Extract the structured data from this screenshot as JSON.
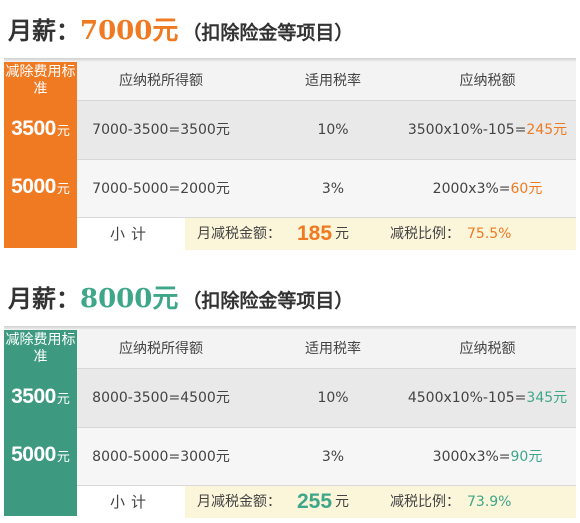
{
  "sections": [
    {
      "title_prefix": "月薪：",
      "salary": "7000元",
      "title_note": "（扣除险金等项目）",
      "left_header": "减除费用标准",
      "headers": [
        "应纳税所得额",
        "适用税率",
        "应纳税额"
      ],
      "rows": [
        {
          "standard": "3500",
          "unit": "元",
          "income_calc": "7000-3500=3500元",
          "rate": "10%",
          "tax_calc": "3500x10%-105=",
          "tax_result": "245元"
        },
        {
          "standard": "5000",
          "unit": "元",
          "income_calc": "7000-5000=2000元",
          "rate": "3%",
          "tax_calc": "2000x3%=",
          "tax_result": "60元"
        }
      ],
      "subtotal_label": "小计",
      "reduction_label": "月减税金额：",
      "reduction_amount": "185",
      "reduction_unit": "元",
      "ratio_label": "减税比例：",
      "ratio_value": "75.5%",
      "accent": "#f07a22"
    },
    {
      "title_prefix": "月薪：",
      "salary": "8000元",
      "title_note": "（扣除险金等项目）",
      "left_header": "减除费用标准",
      "headers": [
        "应纳税所得额",
        "适用税率",
        "应纳税额"
      ],
      "rows": [
        {
          "standard": "3500",
          "unit": "元",
          "income_calc": "8000-3500=4500元",
          "rate": "10%",
          "tax_calc": "4500x10%-105=",
          "tax_result": "345元"
        },
        {
          "standard": "5000",
          "unit": "元",
          "income_calc": "8000-5000=3000元",
          "rate": "3%",
          "tax_calc": "3000x3%=",
          "tax_result": "90元"
        }
      ],
      "subtotal_label": "小计",
      "reduction_label": "月减税金额：",
      "reduction_amount": "255",
      "reduction_unit": "元",
      "ratio_label": "减税比例：",
      "ratio_value": "73.9%",
      "accent": "#3d9a80"
    }
  ]
}
